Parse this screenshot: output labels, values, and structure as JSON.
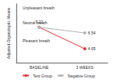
{
  "chart_data": {
    "type": "line",
    "ylabel": "Adjusted Organoleptic Means",
    "categories": [
      "BASELINE",
      "3 WEEKS"
    ],
    "series": [
      {
        "name": "Test Group",
        "color": "#e2393f",
        "values": [
          7.22,
          4.65
        ],
        "value_labels": [
          "7.22",
          "4.65"
        ],
        "marker": "circle",
        "line_style": "solid"
      },
      {
        "name": "Negative Group",
        "color": "#b3b3b3",
        "values": [
          7.22,
          6.54
        ],
        "value_labels": [
          null,
          "6.54"
        ],
        "marker": "circle",
        "line_style": "solid"
      }
    ],
    "ylim": [
      3,
      10
    ],
    "yticks": [
      {
        "value": 5.6,
        "label": "Pleasant breath"
      },
      {
        "value": 7.8,
        "label": "Neutral breath"
      },
      {
        "value": 9.5,
        "label": "Unpleasant breath"
      }
    ],
    "grid": false,
    "data_labels": true,
    "legend": "bottom"
  }
}
